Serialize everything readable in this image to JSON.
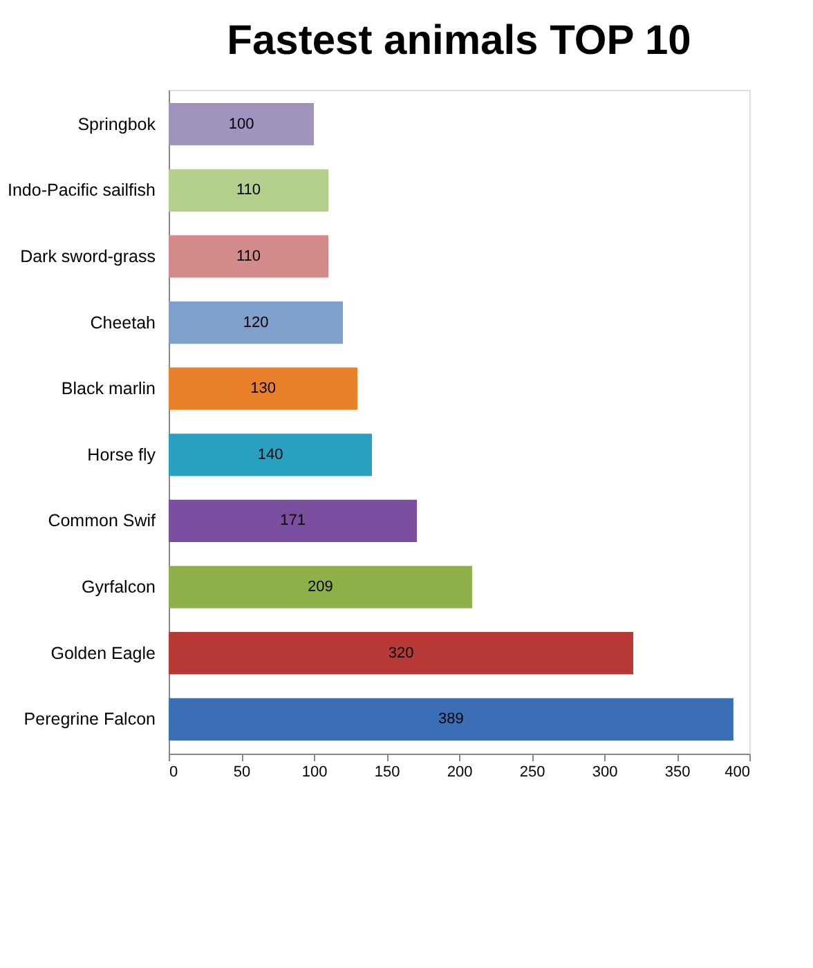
{
  "chart_data": {
    "type": "bar",
    "orientation": "horizontal",
    "title": "Fastest animals TOP 10",
    "categories": [
      "Springbok",
      "Indo-Pacific sailfish",
      "Dark sword-grass",
      "Cheetah",
      "Black marlin",
      "Horse fly",
      "Common Swif",
      "Gyrfalcon",
      "Golden Eagle",
      "Peregrine Falcon"
    ],
    "values": [
      100,
      110,
      110,
      120,
      130,
      140,
      171,
      209,
      320,
      389
    ],
    "colors": [
      "#a094bf",
      "#b3cf8a",
      "#d48a88",
      "#7f9fcc",
      "#e8812a",
      "#2aa0c0",
      "#7b4fa0",
      "#8db048",
      "#b83a36",
      "#3a6fb5"
    ],
    "xlim": [
      0,
      400
    ],
    "xticks": [
      0,
      50,
      100,
      150,
      200,
      250,
      300,
      350,
      400
    ],
    "grid": false,
    "legend": false,
    "data_labels": true
  }
}
